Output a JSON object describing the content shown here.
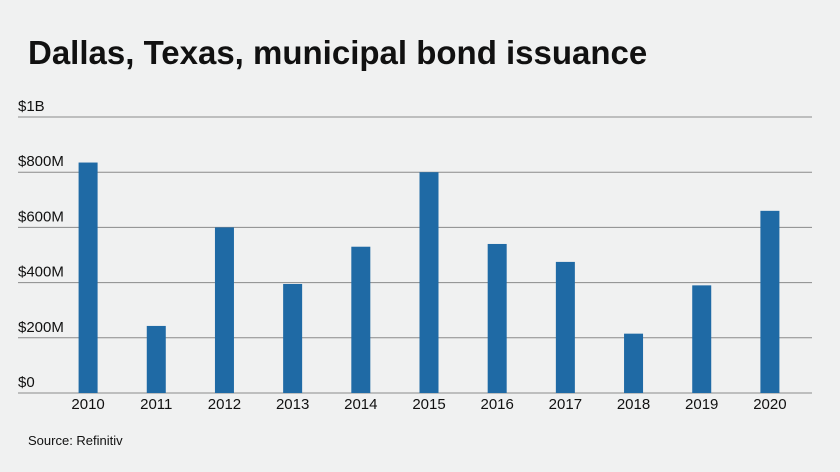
{
  "chart_data": {
    "type": "bar",
    "title": "Dallas, Texas, municipal bond issuance",
    "source": "Source: Refinitiv",
    "categories": [
      "2010",
      "2011",
      "2012",
      "2013",
      "2014",
      "2015",
      "2016",
      "2017",
      "2018",
      "2019",
      "2020"
    ],
    "values": [
      835000000,
      243000000,
      600000000,
      395000000,
      530000000,
      800000000,
      540000000,
      475000000,
      215000000,
      390000000,
      660000000
    ],
    "color": "#1f6aa5",
    "ylim": [
      0,
      1000000000
    ],
    "yticks": [
      {
        "value": 0,
        "label": "$0"
      },
      {
        "value": 200000000,
        "label": "$200M"
      },
      {
        "value": 400000000,
        "label": "$400M"
      },
      {
        "value": 600000000,
        "label": "$600M"
      },
      {
        "value": 800000000,
        "label": "$800M"
      },
      {
        "value": 1000000000,
        "label": "$1B"
      }
    ],
    "grid": true
  }
}
